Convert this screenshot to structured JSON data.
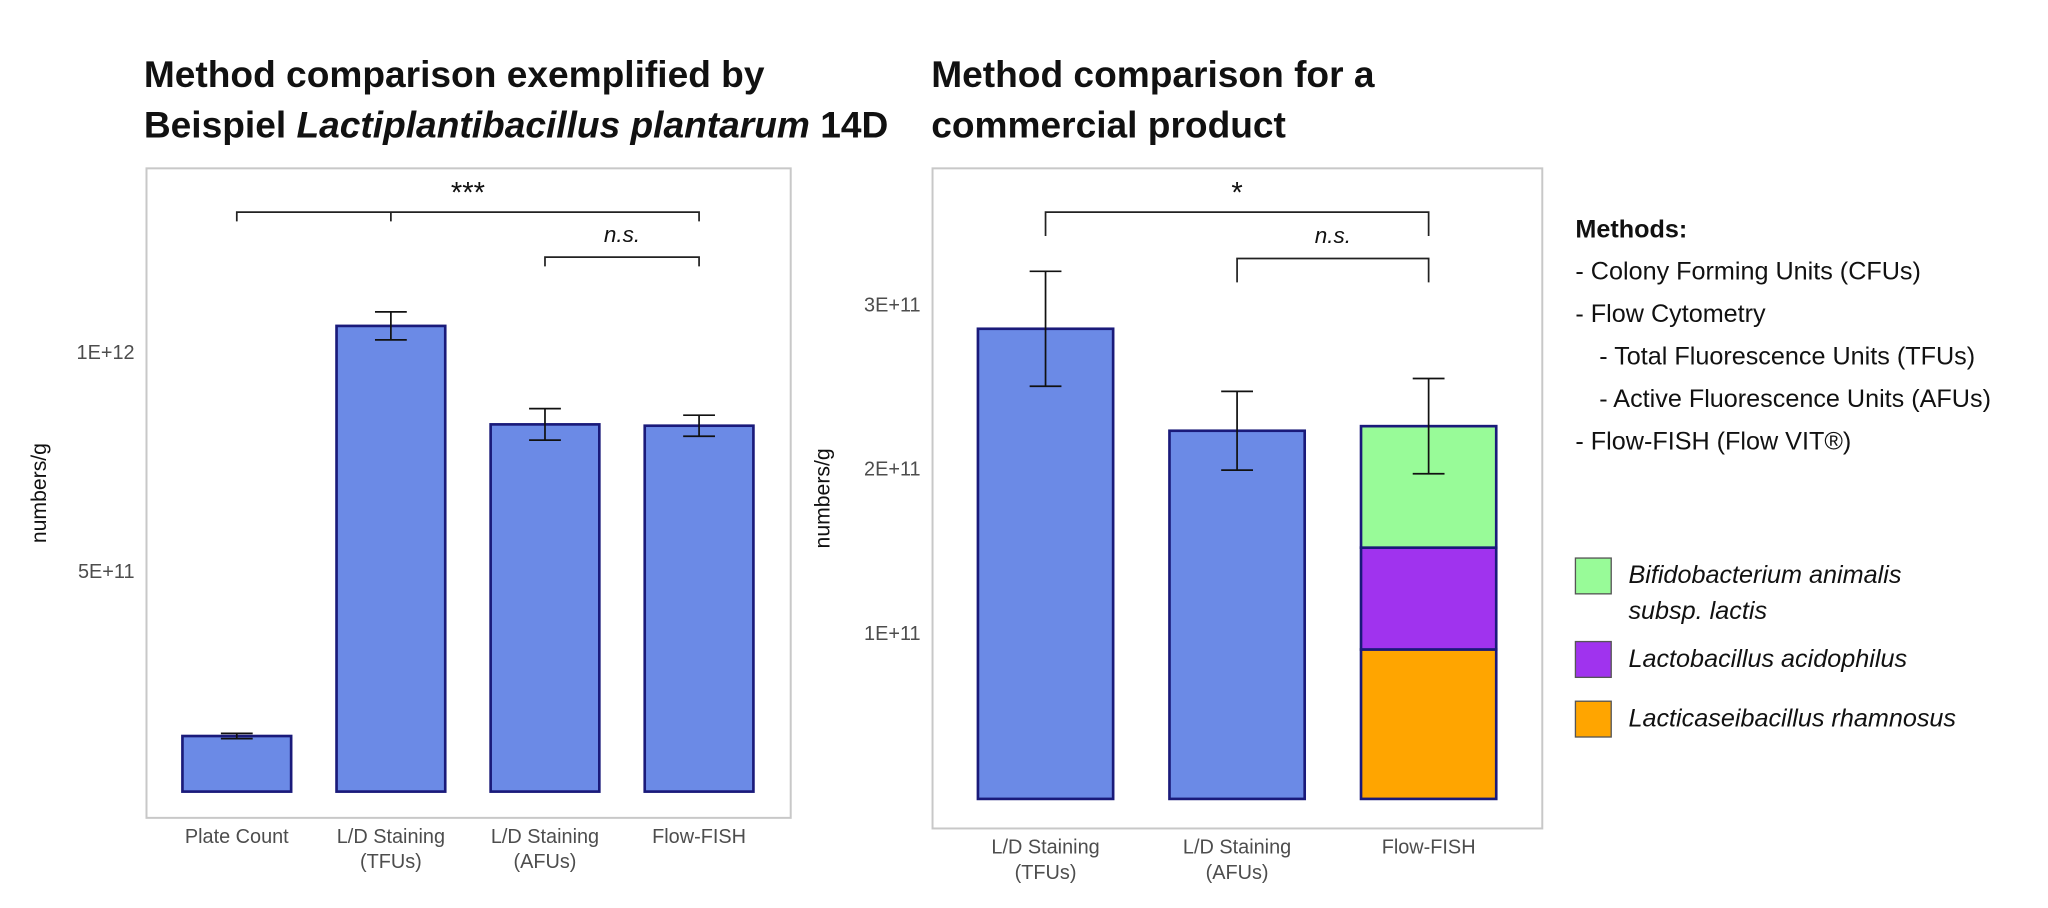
{
  "chart_data": [
    {
      "type": "bar",
      "title": [
        [
          {
            "text": "Method comparison exemplified by"
          }
        ],
        [
          {
            "text": "Beispiel "
          },
          {
            "text": "Lactiplantibacillus plantarum",
            "italic": true
          },
          {
            "text": " 14D"
          }
        ]
      ],
      "ylabel": "numbers/g",
      "categories": [
        [
          "Plate Count"
        ],
        [
          "L/D Staining",
          "(TFUs)"
        ],
        [
          "L/D Staining",
          "(AFUs)"
        ],
        [
          "Flow-FISH"
        ]
      ],
      "values": [
        127000000000.0,
        1064000000000.0,
        839000000000.0,
        836000000000.0
      ],
      "errors": [
        6000000000.0,
        32000000000.0,
        36000000000.0,
        24000000000.0
      ],
      "color": "#6b8ae6",
      "edgecolor": "#1a1a7a",
      "ylim": [
        -60000000000.0,
        1424000000000.0
      ],
      "yticks": [
        {
          "value": 500000000000.0,
          "label": "5E+11"
        },
        {
          "value": 1000000000000.0,
          "label": "1E+12"
        }
      ],
      "significance": [
        "***",
        "n.s."
      ]
    },
    {
      "type": "stacked_bar",
      "title": [
        [
          {
            "text": "Method comparison for a"
          }
        ],
        [
          {
            "text": "commercial product"
          }
        ]
      ],
      "ylabel": "numbers/g",
      "categories": [
        [
          "L/D Staining",
          "(TFUs)"
        ],
        [
          "L/D Staining",
          "(AFUs)"
        ],
        [
          "Flow-FISH"
        ]
      ],
      "values": [
        286300000000.0,
        224200000000.0,
        null
      ],
      "color": "#6b8ae6",
      "edgecolor": "#1a1a7a",
      "series": [
        {
          "name": "Lacticaseibacillus rhamnosus",
          "color": "#ffa500",
          "values": [
            null,
            null,
            91000000000.0
          ]
        },
        {
          "name": "Lactobacillus acidophilus",
          "color": "#a033ee",
          "values": [
            null,
            null,
            62000000000.0
          ]
        },
        {
          "name": "Bifidobacterium animalis\nsubsp. lactis",
          "color": "#98fb98",
          "values": [
            null,
            null,
            74000000000.0
          ]
        }
      ],
      "errors": [
        35000000000.0,
        24000000000.0,
        29000000000.0
      ],
      "ylim": [
        -18000000000.0,
        384000000000.0
      ],
      "yticks": [
        {
          "value": 100000000000.0,
          "label": "1E+11"
        },
        {
          "value": 200000000000.0,
          "label": "2E+11"
        },
        {
          "value": 300000000000.0,
          "label": "3E+11"
        }
      ],
      "significance": [
        "*",
        "n.s."
      ]
    }
  ],
  "methods_note": {
    "heading": "Methods:",
    "items": [
      {
        "text": "- Colony Forming Units (CFUs)"
      },
      {
        "text": "- Flow Cytometry",
        "children": [
          "- Total Fluorescence Units (TFUs)",
          "- Active Fluorescence Units (AFUs)"
        ]
      },
      {
        "text": "- Flow-FISH (Flow VIT®)"
      }
    ]
  }
}
